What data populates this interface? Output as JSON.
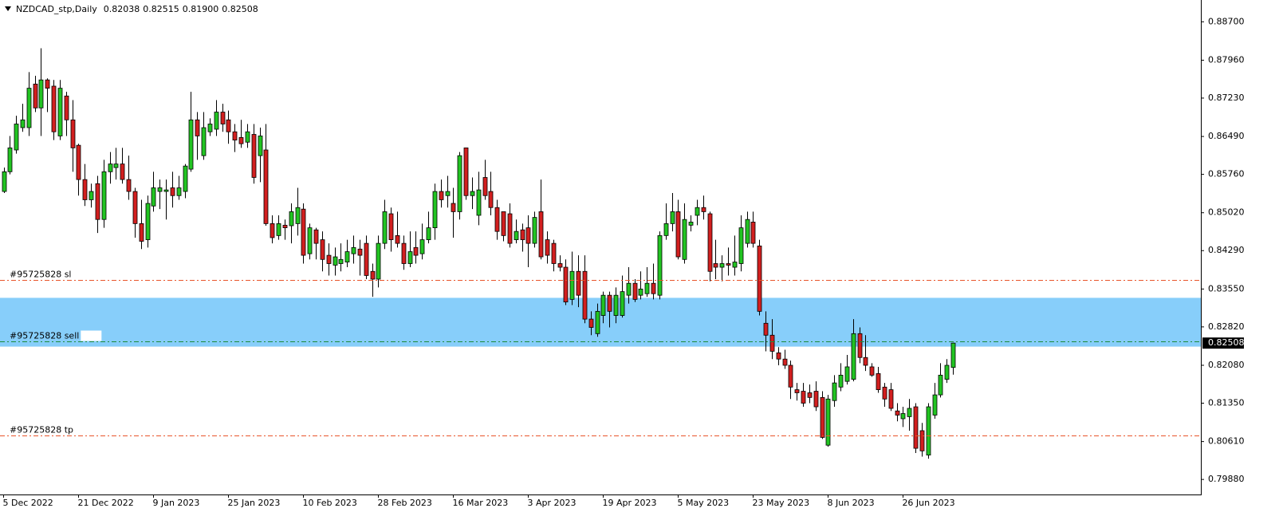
{
  "chart_data": {
    "type": "candlestick",
    "title": "NZDCAD_stp,Daily",
    "ohlc_labels": [
      "0.82038",
      "0.82515",
      "0.81900",
      "0.82508"
    ],
    "up_color": "#22c422",
    "down_color": "#d21f1f",
    "categories": [
      "5 Dec 2022",
      null,
      null,
      null,
      null,
      null,
      null,
      null,
      null,
      null,
      null,
      null,
      "21 Dec 2022",
      null,
      null,
      null,
      null,
      null,
      null,
      null,
      null,
      null,
      null,
      null,
      "9 Jan 2023",
      null,
      null,
      null,
      null,
      null,
      null,
      null,
      null,
      null,
      null,
      null,
      "25 Jan 2023",
      null,
      null,
      null,
      null,
      null,
      null,
      null,
      null,
      null,
      null,
      null,
      "10 Feb 2023",
      null,
      null,
      null,
      null,
      null,
      null,
      null,
      null,
      null,
      null,
      null,
      "28 Feb 2023",
      null,
      null,
      null,
      null,
      null,
      null,
      null,
      null,
      null,
      null,
      null,
      "16 Mar 2023",
      null,
      null,
      null,
      null,
      null,
      null,
      null,
      null,
      null,
      null,
      null,
      "3 Apr 2023",
      null,
      null,
      null,
      null,
      null,
      null,
      null,
      null,
      null,
      null,
      null,
      "19 Apr 2023",
      null,
      null,
      null,
      null,
      null,
      null,
      null,
      null,
      null,
      null,
      null,
      "5 May 2023",
      null,
      null,
      null,
      null,
      null,
      null,
      null,
      null,
      null,
      null,
      null,
      "23 May 2023",
      null,
      null,
      null,
      null,
      null,
      null,
      null,
      null,
      null,
      null,
      null,
      "8 Jun 2023",
      null,
      null,
      null,
      null,
      null,
      null,
      null,
      null,
      null,
      null,
      null,
      "26 Jun 2023",
      null,
      null,
      null,
      null,
      null,
      null,
      null,
      null
    ],
    "open": [
      0.8543,
      0.8581,
      0.8623,
      0.8666,
      0.8666,
      0.875,
      0.8704,
      0.8758,
      0.8746,
      0.865,
      0.8727,
      0.8681,
      0.8632,
      0.8566,
      0.8527,
      0.8558,
      0.8489,
      0.8581,
      0.8589,
      0.8596,
      0.8566,
      0.8543,
      0.8481,
      0.845,
      0.8515,
      0.8543,
      0.8543,
      0.855,
      0.8535,
      0.8543,
      0.8586,
      0.8681,
      0.8612,
      0.8658,
      0.8663,
      0.8696,
      0.8681,
      0.8658,
      0.8647,
      0.8638,
      0.8653,
      0.8612,
      0.8623,
      0.8481,
      0.8458,
      0.8478,
      0.8477,
      0.8481,
      0.8509,
      0.8423,
      0.8469,
      0.845,
      0.842,
      0.8401,
      0.8404,
      0.8407,
      0.8423,
      0.8432,
      0.8443,
      0.8389,
      0.8374,
      0.8443,
      0.85,
      0.8458,
      0.8443,
      0.8404,
      0.8435,
      0.8423,
      0.845,
      0.8473,
      0.8543,
      0.8535,
      0.852,
      0.8504,
      0.8627,
      0.8535,
      0.8497,
      0.857,
      0.8543,
      0.8512,
      0.8504,
      0.85,
      0.845,
      0.8469,
      0.8473,
      0.8443,
      0.8504,
      0.845,
      0.8443,
      0.8404,
      0.8397,
      0.8335,
      0.8389,
      0.8389,
      0.8297,
      0.8269,
      0.8304,
      0.8343,
      0.8304,
      0.8304,
      0.8343,
      0.8366,
      0.8343,
      0.8346,
      0.8366,
      0.8343,
      0.8458,
      0.8481,
      0.8504,
      0.8412,
      0.8478,
      0.8497,
      0.8512,
      0.85,
      0.8404,
      0.8397,
      0.8404,
      0.8397,
      0.8404,
      0.8443,
      0.8484,
      0.8438,
      0.8289,
      0.8266,
      0.8232,
      0.822,
      0.8208,
      0.8161,
      0.8158,
      0.8155,
      0.8158,
      0.8146,
      0.8054,
      0.814,
      0.8166,
      0.8177,
      0.8181,
      0.8269,
      0.8223,
      0.8205,
      0.8192,
      0.8166,
      0.8161,
      0.812,
      0.8105,
      0.8109,
      0.8128,
      0.8082,
      0.8035,
      0.8112,
      0.8151,
      0.8181,
      0.82038
    ],
    "high": [
      0.8589,
      0.865,
      0.8689,
      0.8712,
      0.8773,
      0.8766,
      0.8819,
      0.8761,
      0.8758,
      0.8758,
      0.8735,
      0.8719,
      0.8635,
      0.8596,
      0.8558,
      0.8573,
      0.8604,
      0.8619,
      0.8627,
      0.8627,
      0.8612,
      0.855,
      0.8527,
      0.8535,
      0.8581,
      0.8566,
      0.8566,
      0.8581,
      0.8573,
      0.8596,
      0.8735,
      0.8696,
      0.8696,
      0.8684,
      0.8719,
      0.8712,
      0.8699,
      0.8673,
      0.8681,
      0.8673,
      0.8673,
      0.8666,
      0.8673,
      0.8497,
      0.8497,
      0.8489,
      0.852,
      0.855,
      0.852,
      0.8481,
      0.8473,
      0.8466,
      0.8443,
      0.8435,
      0.8443,
      0.845,
      0.8458,
      0.845,
      0.8458,
      0.8404,
      0.8458,
      0.8527,
      0.8512,
      0.8504,
      0.8458,
      0.8466,
      0.8466,
      0.8481,
      0.8504,
      0.8558,
      0.8566,
      0.8573,
      0.855,
      0.8619,
      0.8627,
      0.857,
      0.8581,
      0.8604,
      0.8581,
      0.8527,
      0.8504,
      0.852,
      0.8489,
      0.8481,
      0.8497,
      0.8504,
      0.8566,
      0.8466,
      0.845,
      0.842,
      0.8412,
      0.8427,
      0.842,
      0.842,
      0.8312,
      0.8327,
      0.835,
      0.835,
      0.8358,
      0.8381,
      0.8397,
      0.8374,
      0.8389,
      0.8397,
      0.8404,
      0.8466,
      0.852,
      0.854,
      0.8527,
      0.852,
      0.8497,
      0.8527,
      0.8535,
      0.8504,
      0.845,
      0.842,
      0.8435,
      0.8458,
      0.8497,
      0.8504,
      0.8504,
      0.845,
      0.8312,
      0.8297,
      0.8243,
      0.8238,
      0.8217,
      0.8174,
      0.8174,
      0.8171,
      0.8177,
      0.8158,
      0.8151,
      0.8189,
      0.8212,
      0.8228,
      0.8297,
      0.8281,
      0.8266,
      0.8212,
      0.8205,
      0.8174,
      0.8174,
      0.8135,
      0.8128,
      0.8143,
      0.8135,
      0.8097,
      0.8135,
      0.8174,
      0.8212,
      0.822,
      0.82515
    ],
    "low": [
      0.854,
      0.8576,
      0.8616,
      0.8658,
      0.865,
      0.8696,
      0.865,
      0.8696,
      0.8642,
      0.8642,
      0.865,
      0.8581,
      0.8535,
      0.8515,
      0.8512,
      0.8463,
      0.8473,
      0.8558,
      0.8566,
      0.8558,
      0.8527,
      0.8454,
      0.8432,
      0.8435,
      0.8504,
      0.8509,
      0.8489,
      0.8512,
      0.8527,
      0.853,
      0.8581,
      0.8604,
      0.8604,
      0.865,
      0.865,
      0.8658,
      0.8635,
      0.8619,
      0.8627,
      0.8627,
      0.8558,
      0.8561,
      0.8477,
      0.8443,
      0.845,
      0.845,
      0.8443,
      0.8458,
      0.8404,
      0.8412,
      0.8412,
      0.8389,
      0.8381,
      0.8381,
      0.8389,
      0.8397,
      0.8404,
      0.8381,
      0.8374,
      0.834,
      0.8358,
      0.8432,
      0.8427,
      0.8435,
      0.8392,
      0.8397,
      0.8404,
      0.8412,
      0.8443,
      0.845,
      0.8512,
      0.8512,
      0.8454,
      0.8489,
      0.8527,
      0.8509,
      0.8478,
      0.8527,
      0.8497,
      0.845,
      0.8447,
      0.8435,
      0.8443,
      0.8427,
      0.8397,
      0.8435,
      0.8412,
      0.8404,
      0.8389,
      0.8389,
      0.8324,
      0.8324,
      0.832,
      0.8289,
      0.8266,
      0.8263,
      0.8289,
      0.8281,
      0.8289,
      0.83,
      0.8327,
      0.833,
      0.8335,
      0.834,
      0.8335,
      0.8335,
      0.845,
      0.8466,
      0.8412,
      0.8404,
      0.8466,
      0.8478,
      0.8489,
      0.837,
      0.8374,
      0.837,
      0.8381,
      0.8381,
      0.8389,
      0.8435,
      0.8435,
      0.8304,
      0.8235,
      0.822,
      0.8208,
      0.8201,
      0.8143,
      0.814,
      0.8128,
      0.8135,
      0.812,
      0.8066,
      0.8051,
      0.8128,
      0.8158,
      0.8171,
      0.8177,
      0.8212,
      0.8197,
      0.8186,
      0.8155,
      0.8128,
      0.812,
      0.81,
      0.8089,
      0.8082,
      0.8039,
      0.8032,
      0.8028,
      0.8105,
      0.8146,
      0.8174,
      0.819
    ],
    "close": [
      0.8581,
      0.8627,
      0.8673,
      0.8681,
      0.8742,
      0.8704,
      0.8758,
      0.8742,
      0.8658,
      0.8742,
      0.8681,
      0.8627,
      0.8566,
      0.8527,
      0.8543,
      0.8489,
      0.8581,
      0.8596,
      0.8596,
      0.8566,
      0.8543,
      0.8481,
      0.8447,
      0.852,
      0.855,
      0.855,
      0.8546,
      0.8535,
      0.855,
      0.8592,
      0.8681,
      0.865,
      0.8666,
      0.8673,
      0.8696,
      0.8673,
      0.8658,
      0.8642,
      0.8635,
      0.8658,
      0.857,
      0.865,
      0.8481,
      0.8454,
      0.8481,
      0.8473,
      0.8504,
      0.8512,
      0.842,
      0.8473,
      0.8443,
      0.8412,
      0.8404,
      0.8417,
      0.8412,
      0.8427,
      0.8435,
      0.842,
      0.8381,
      0.8374,
      0.8443,
      0.8504,
      0.845,
      0.8443,
      0.8404,
      0.8427,
      0.842,
      0.845,
      0.8473,
      0.8543,
      0.8527,
      0.8543,
      0.8504,
      0.8612,
      0.8535,
      0.8543,
      0.8546,
      0.8535,
      0.8512,
      0.8466,
      0.8458,
      0.8443,
      0.8466,
      0.845,
      0.8443,
      0.8493,
      0.8417,
      0.842,
      0.8404,
      0.8397,
      0.833,
      0.8389,
      0.8343,
      0.8297,
      0.8281,
      0.8312,
      0.8343,
      0.8312,
      0.8343,
      0.835,
      0.8366,
      0.8335,
      0.8355,
      0.8366,
      0.8346,
      0.8458,
      0.8481,
      0.8504,
      0.8417,
      0.8489,
      0.8484,
      0.8512,
      0.8504,
      0.8389,
      0.8397,
      0.8404,
      0.8401,
      0.8407,
      0.8473,
      0.8489,
      0.8443,
      0.8312,
      0.8266,
      0.8235,
      0.822,
      0.8208,
      0.8166,
      0.8155,
      0.8135,
      0.8146,
      0.8128,
      0.8069,
      0.8143,
      0.8174,
      0.8189,
      0.8205,
      0.8269,
      0.8223,
      0.8208,
      0.8189,
      0.8161,
      0.8143,
      0.8125,
      0.8112,
      0.8115,
      0.8125,
      0.8048,
      0.8043,
      0.8128,
      0.8151,
      0.8189,
      0.8208,
      0.82508
    ],
    "ylim": [
      0.7959,
      0.8912
    ],
    "yticks": [
      {
        "value": 0.887,
        "label": "0.88700"
      },
      {
        "value": 0.8796,
        "label": "0.87960"
      },
      {
        "value": 0.8723,
        "label": "0.87230"
      },
      {
        "value": 0.8649,
        "label": "0.86490"
      },
      {
        "value": 0.8576,
        "label": "0.85760"
      },
      {
        "value": 0.8502,
        "label": "0.85020"
      },
      {
        "value": 0.8429,
        "label": "0.84290"
      },
      {
        "value": 0.8355,
        "label": "0.83550"
      },
      {
        "value": 0.8282,
        "label": "0.82820"
      },
      {
        "value": 0.8208,
        "label": "0.82080"
      },
      {
        "value": 0.8135,
        "label": "0.81350"
      },
      {
        "value": 0.8061,
        "label": "0.80610"
      },
      {
        "value": 0.7988,
        "label": "0.79880"
      }
    ],
    "zone": {
      "range": [
        0.8244,
        0.8338
      ],
      "color": "#87cefa"
    },
    "levels": [
      {
        "label": "#95725828 sl",
        "value": 0.8372,
        "color": "#e8552a"
      },
      {
        "label": "#95725828 sell",
        "value": 0.8254,
        "color": "#1e8a3a"
      },
      {
        "label": "#95725828 tp",
        "value": 0.8072,
        "color": "#e8552a"
      }
    ],
    "price_tag": {
      "value": 0.82508,
      "label": "0.82508"
    }
  }
}
